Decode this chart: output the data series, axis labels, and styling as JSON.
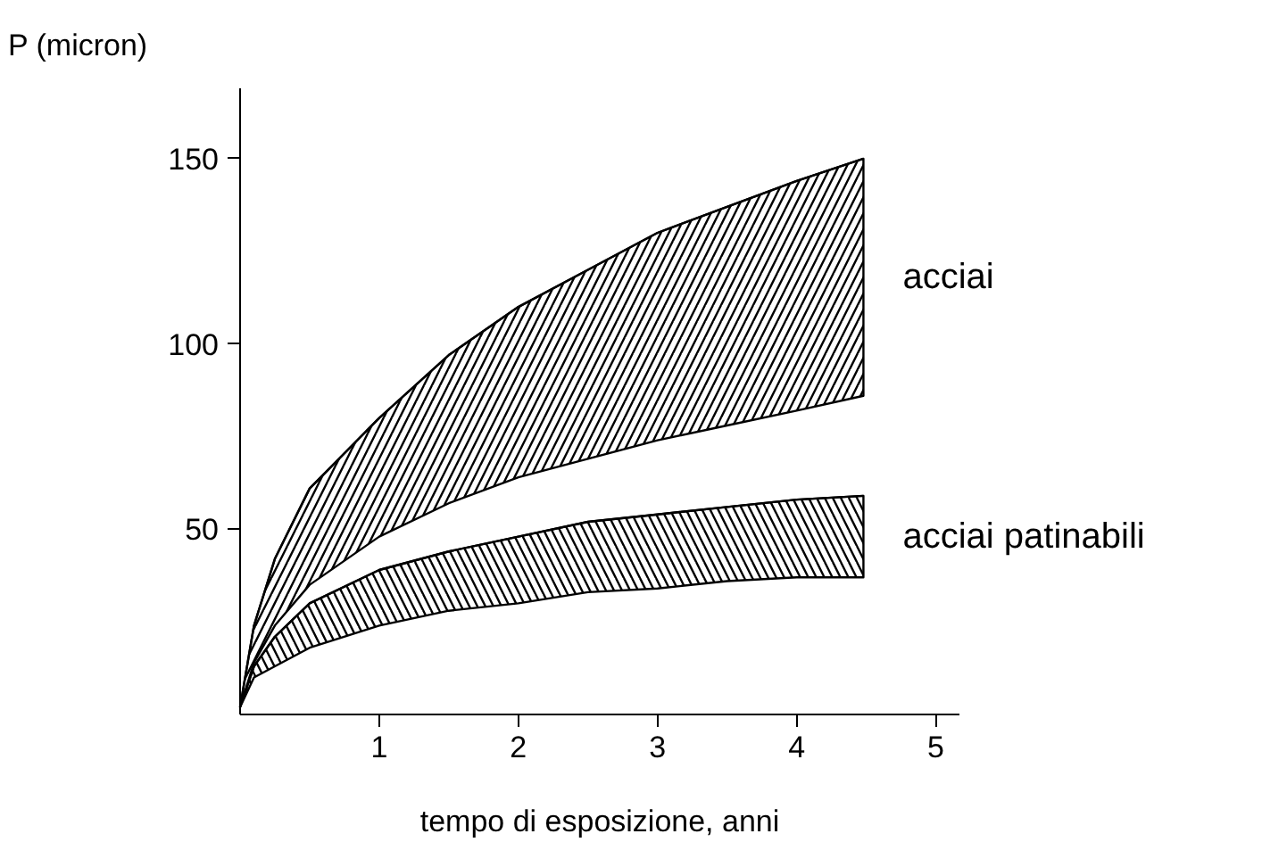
{
  "chart_data": {
    "type": "line",
    "xlabel": "tempo di esposizione, anni",
    "ylabel": "P (micron)",
    "x": [
      0,
      0.1,
      0.25,
      0.5,
      1,
      1.5,
      2,
      2.5,
      3,
      3.5,
      4,
      4.48
    ],
    "series": [
      {
        "name": "acciai",
        "color": "#000000",
        "values": [
          2,
          24,
          42,
          61,
          80,
          97,
          110,
          120,
          130,
          137,
          144,
          150
        ],
        "upper": [
          2,
          24,
          42,
          61,
          80,
          97,
          110,
          120,
          130,
          137,
          144,
          150
        ],
        "lower": [
          2,
          14,
          24,
          35,
          48,
          57,
          64,
          69,
          74,
          78,
          82,
          86
        ]
      },
      {
        "name": "acciai patinabili",
        "color": "#000000",
        "values": [
          2,
          13,
          21,
          30,
          39,
          44,
          48,
          52,
          54,
          56,
          58,
          59
        ],
        "upper": [
          2,
          13,
          21,
          30,
          39,
          44,
          48,
          52,
          54,
          56,
          58,
          59
        ],
        "lower": [
          2,
          10,
          13,
          18,
          24,
          28,
          30,
          33,
          34,
          36,
          37,
          37
        ]
      }
    ],
    "xlim": [
      0,
      5.17
    ],
    "ylim": [
      0,
      169
    ],
    "xticks": [
      1,
      2,
      3,
      4,
      5
    ],
    "yticks": [
      50,
      100,
      150
    ],
    "grid": false,
    "marker": "none",
    "line_style": "solid"
  }
}
